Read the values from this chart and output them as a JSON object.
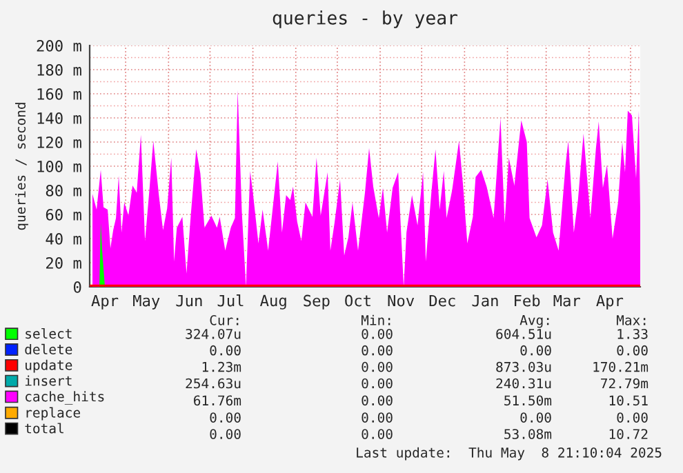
{
  "chart_data": {
    "type": "area",
    "title": "queries - by year",
    "ylabel": "queries / second",
    "xlim": [
      "2024-04-05",
      "2025-05-08"
    ],
    "ylim": [
      0,
      200
    ],
    "yticks": [
      0,
      {
        "value": 10,
        "label": null
      },
      {
        "value": 20,
        "label": "20 m"
      },
      {
        "value": 30,
        "label": null
      },
      {
        "value": 40,
        "label": "40 m"
      },
      {
        "value": 50,
        "label": null
      },
      {
        "value": 60,
        "label": "60 m"
      },
      {
        "value": 70,
        "label": null
      },
      {
        "value": 80,
        "label": "80 m"
      },
      {
        "value": 90,
        "label": null
      },
      {
        "value": 100,
        "label": "100 m"
      },
      {
        "value": 110,
        "label": null
      },
      {
        "value": 120,
        "label": "120 m"
      },
      {
        "value": 130,
        "label": null
      },
      {
        "value": 140,
        "label": "140 m"
      },
      {
        "value": 150,
        "label": null
      },
      {
        "value": 160,
        "label": "160 m"
      },
      {
        "value": 170,
        "label": null
      },
      {
        "value": 180,
        "label": "180 m"
      },
      {
        "value": 190,
        "label": null
      },
      {
        "value": 200,
        "label": "200 m"
      }
    ],
    "xticks": [
      {
        "value": "2024-04-16",
        "label": "Apr"
      },
      {
        "value": "2024-05-01",
        "label": null
      },
      {
        "value": "2024-05-16",
        "label": "May"
      },
      {
        "value": "2024-06-01",
        "label": null
      },
      {
        "value": "2024-06-16",
        "label": "Jun"
      },
      {
        "value": "2024-07-01",
        "label": null
      },
      {
        "value": "2024-07-16",
        "label": "Jul"
      },
      {
        "value": "2024-08-01",
        "label": null
      },
      {
        "value": "2024-08-16",
        "label": "Aug"
      },
      {
        "value": "2024-09-01",
        "label": null
      },
      {
        "value": "2024-09-16",
        "label": "Sep"
      },
      {
        "value": "2024-10-01",
        "label": null
      },
      {
        "value": "2024-10-16",
        "label": "Oct"
      },
      {
        "value": "2024-11-01",
        "label": null
      },
      {
        "value": "2024-11-16",
        "label": "Nov"
      },
      {
        "value": "2024-12-01",
        "label": null
      },
      {
        "value": "2024-12-16",
        "label": "Dec"
      },
      {
        "value": "2025-01-01",
        "label": null
      },
      {
        "value": "2025-01-16",
        "label": "Jan"
      },
      {
        "value": "2025-02-01",
        "label": null
      },
      {
        "value": "2025-02-15",
        "label": "Feb"
      },
      {
        "value": "2025-03-01",
        "label": null
      },
      {
        "value": "2025-03-16",
        "label": "Mar"
      },
      {
        "value": "2025-04-01",
        "label": null
      },
      {
        "value": "2025-04-16",
        "label": "Apr"
      },
      {
        "value": "2025-05-01",
        "label": null
      }
    ],
    "grid": true,
    "legend": "bottom",
    "series": [
      {
        "name": "select",
        "color": "#00ff00",
        "x": [
          "2024-04-05",
          "2024-04-12",
          "2024-04-13",
          "2024-04-14",
          "2024-04-16",
          "2025-05-08"
        ],
        "values": [
          0,
          0,
          53,
          30,
          0,
          0
        ]
      },
      {
        "name": "delete",
        "color": "#0022ff"
      },
      {
        "name": "update",
        "color": "#ff0000",
        "type": "line",
        "x": [
          "2024-04-05",
          "2025-05-08"
        ],
        "values": [
          1,
          1
        ]
      },
      {
        "name": "insert",
        "color": "#00aaaa"
      },
      {
        "name": "cache_hits",
        "color": "#ff00ff",
        "x": [
          "2024-04-07",
          "2024-04-10",
          "2024-04-13",
          "2024-04-15",
          "2024-04-18",
          "2024-04-20",
          "2024-04-22",
          "2024-04-24",
          "2024-04-26",
          "2024-04-28",
          "2024-04-30",
          "2024-05-03",
          "2024-05-06",
          "2024-05-09",
          "2024-05-12",
          "2024-05-15",
          "2024-05-18",
          "2024-05-21",
          "2024-05-25",
          "2024-05-28",
          "2024-05-31",
          "2024-06-03",
          "2024-06-05",
          "2024-06-07",
          "2024-06-11",
          "2024-06-14",
          "2024-06-17",
          "2024-06-21",
          "2024-06-24",
          "2024-06-27",
          "2024-07-02",
          "2024-07-06",
          "2024-07-08",
          "2024-07-12",
          "2024-07-16",
          "2024-07-19",
          "2024-07-21",
          "2024-07-24",
          "2024-07-27",
          "2024-07-30",
          "2024-08-01",
          "2024-08-05",
          "2024-08-08",
          "2024-08-12",
          "2024-08-19",
          "2024-08-22",
          "2024-08-25",
          "2024-08-28",
          "2024-08-30",
          "2024-09-02",
          "2024-09-05",
          "2024-09-08",
          "2024-09-13",
          "2024-09-16",
          "2024-09-19",
          "2024-09-24",
          "2024-09-26",
          "2024-09-29",
          "2024-10-03",
          "2024-10-06",
          "2024-10-09",
          "2024-10-12",
          "2024-10-16",
          "2024-10-21",
          "2024-10-24",
          "2024-10-27",
          "2024-10-31",
          "2024-11-03",
          "2024-11-06",
          "2024-11-10",
          "2024-11-14",
          "2024-11-18",
          "2024-11-20",
          "2024-11-24",
          "2024-11-28",
          "2024-12-02",
          "2024-12-04",
          "2024-12-08",
          "2024-12-11",
          "2024-12-14",
          "2024-12-17",
          "2024-12-19",
          "2024-12-23",
          "2024-12-28",
          "2024-12-31",
          "2025-01-03",
          "2025-01-07",
          "2025-01-09",
          "2025-01-13",
          "2025-01-17",
          "2025-01-22",
          "2025-01-27",
          "2025-01-30",
          "2025-02-02",
          "2025-02-06",
          "2025-02-11",
          "2025-02-15",
          "2025-02-17",
          "2025-02-22",
          "2025-02-26",
          "2025-03-02",
          "2025-03-06",
          "2025-03-10",
          "2025-03-15",
          "2025-03-17",
          "2025-03-21",
          "2025-03-24",
          "2025-03-28",
          "2025-04-02",
          "2025-04-06",
          "2025-04-08",
          "2025-04-11",
          "2025-04-14",
          "2025-04-18",
          "2025-04-22",
          "2025-04-25",
          "2025-04-27",
          "2025-04-29",
          "2025-05-02",
          "2025-05-05",
          "2025-05-07",
          "2025-05-08"
        ],
        "values": [
          77,
          64,
          97,
          66,
          64,
          32,
          47,
          57,
          92,
          45,
          70,
          59,
          84,
          78,
          126,
          38,
          78,
          121,
          76,
          47,
          65,
          107,
          21,
          49,
          58,
          11,
          58,
          114,
          94,
          49,
          59,
          49,
          58,
          30,
          49,
          57,
          163,
          62,
          0,
          96,
          78,
          36,
          64,
          30,
          104,
          45,
          76,
          72,
          83,
          54,
          38,
          70,
          58,
          107,
          59,
          95,
          30,
          53,
          89,
          26,
          41,
          70,
          30,
          78,
          115,
          83,
          57,
          82,
          45,
          82,
          95,
          0,
          45,
          76,
          51,
          95,
          21,
          78,
          114,
          64,
          96,
          57,
          80,
          121,
          83,
          36,
          58,
          91,
          97,
          83,
          57,
          140,
          53,
          107,
          84,
          138,
          120,
          57,
          41,
          51,
          89,
          45,
          30,
          101,
          121,
          45,
          72,
          127,
          57,
          115,
          137,
          82,
          101,
          40,
          70,
          120,
          95,
          146,
          142,
          90,
          146,
          64
        ]
      },
      {
        "name": "replace",
        "color": "#ffaa00"
      },
      {
        "name": "total",
        "color": "#000000"
      }
    ],
    "annotations": [
      "Cur:",
      "Min:",
      "Avg:",
      "Max:",
      "324.07u",
      "0.00",
      "604.51u",
      "1.33",
      "0.00",
      "0.00",
      "0.00",
      "0.00",
      "1.23m",
      "0.00",
      "873.03u",
      "170.21m",
      "254.63u",
      "0.00",
      "240.31u",
      "72.79m",
      "61.76m",
      "0.00",
      "51.50m",
      "10.51",
      "0.00",
      "0.00",
      "0.00",
      "0.00",
      "0.00",
      "0.00",
      "53.08m",
      "10.72",
      "Last update:  Thu May  8 21:10:04 2025"
    ]
  }
}
